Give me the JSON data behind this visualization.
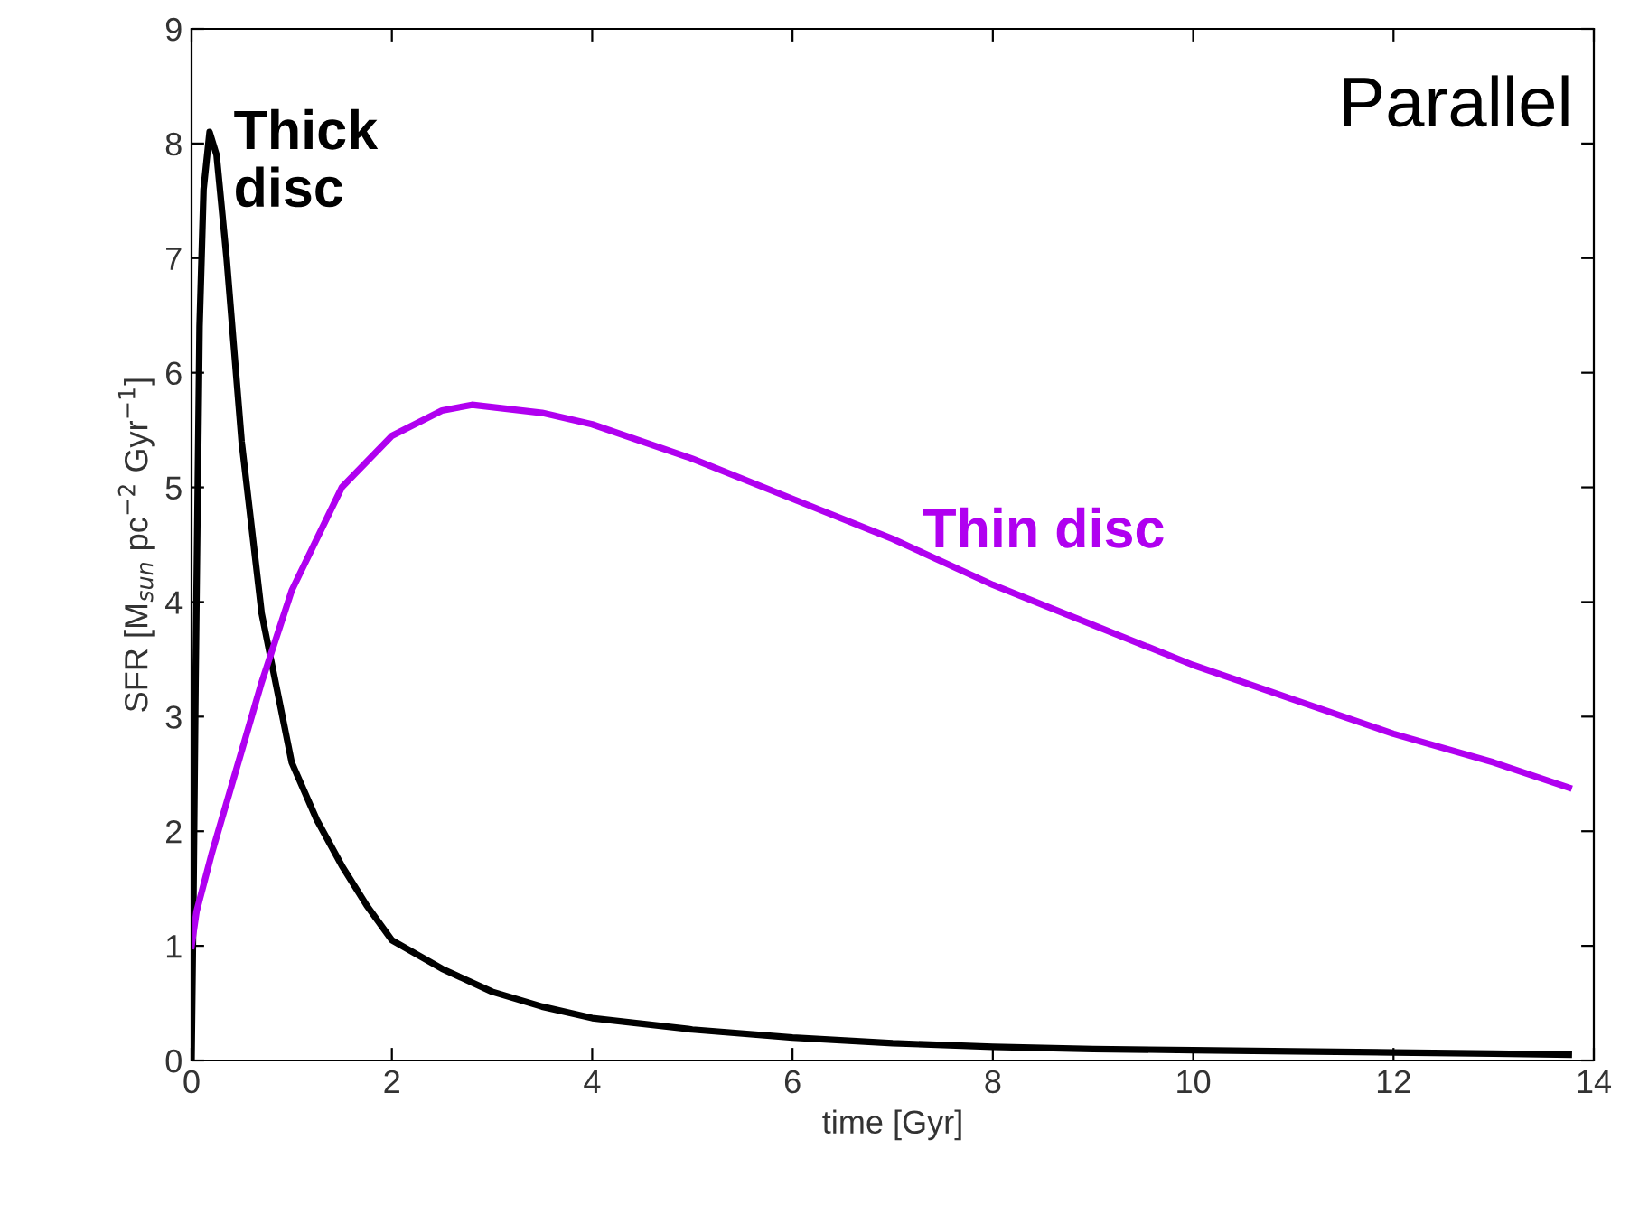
{
  "chart_data": {
    "type": "line",
    "xlabel": "time [Gyr]",
    "ylabel": "SFR [M$_{sun}$ pc$^{−2}$ Gyr$^{−1}$]",
    "annotations": [
      "Parallel"
    ],
    "xlim": [
      0,
      14
    ],
    "ylim": [
      0,
      9
    ],
    "xticks": [
      0,
      2,
      4,
      6,
      8,
      10,
      12,
      14
    ],
    "yticks": [
      0,
      1,
      2,
      3,
      4,
      5,
      6,
      7,
      8,
      9
    ],
    "grid": false,
    "legend": false,
    "marker": "none",
    "line_style": "solid",
    "series": [
      {
        "name": "Thick\ndisc",
        "color": "#000000",
        "x": [
          0,
          0.02,
          0.04,
          0.08,
          0.12,
          0.18,
          0.25,
          0.35,
          0.5,
          0.7,
          1,
          1.25,
          1.5,
          1.75,
          2,
          2.5,
          3,
          3.5,
          4,
          5,
          6,
          7,
          8,
          9,
          10,
          11,
          12,
          13,
          13.75
        ],
        "values": [
          0,
          1.5,
          3.3,
          6.4,
          7.6,
          8.1,
          7.9,
          7.0,
          5.4,
          3.9,
          2.6,
          2.1,
          1.7,
          1.35,
          1.05,
          0.8,
          0.6,
          0.47,
          0.37,
          0.27,
          0.2,
          0.15,
          0.12,
          0.1,
          0.09,
          0.08,
          0.07,
          0.06,
          0.05
        ]
      },
      {
        "name": "Thin disc",
        "color": "#b000f0",
        "x": [
          0,
          0.05,
          0.2,
          0.5,
          0.7,
          1,
          1.5,
          2,
          2.5,
          2.8,
          3.5,
          4,
          5,
          6,
          7,
          8,
          9,
          10,
          11,
          12,
          13,
          13.75
        ],
        "values": [
          1.0,
          1.3,
          1.8,
          2.7,
          3.3,
          4.1,
          5.0,
          5.45,
          5.67,
          5.72,
          5.65,
          5.55,
          5.25,
          4.9,
          4.55,
          4.15,
          3.8,
          3.45,
          3.15,
          2.85,
          2.6,
          2.38
        ]
      }
    ]
  }
}
